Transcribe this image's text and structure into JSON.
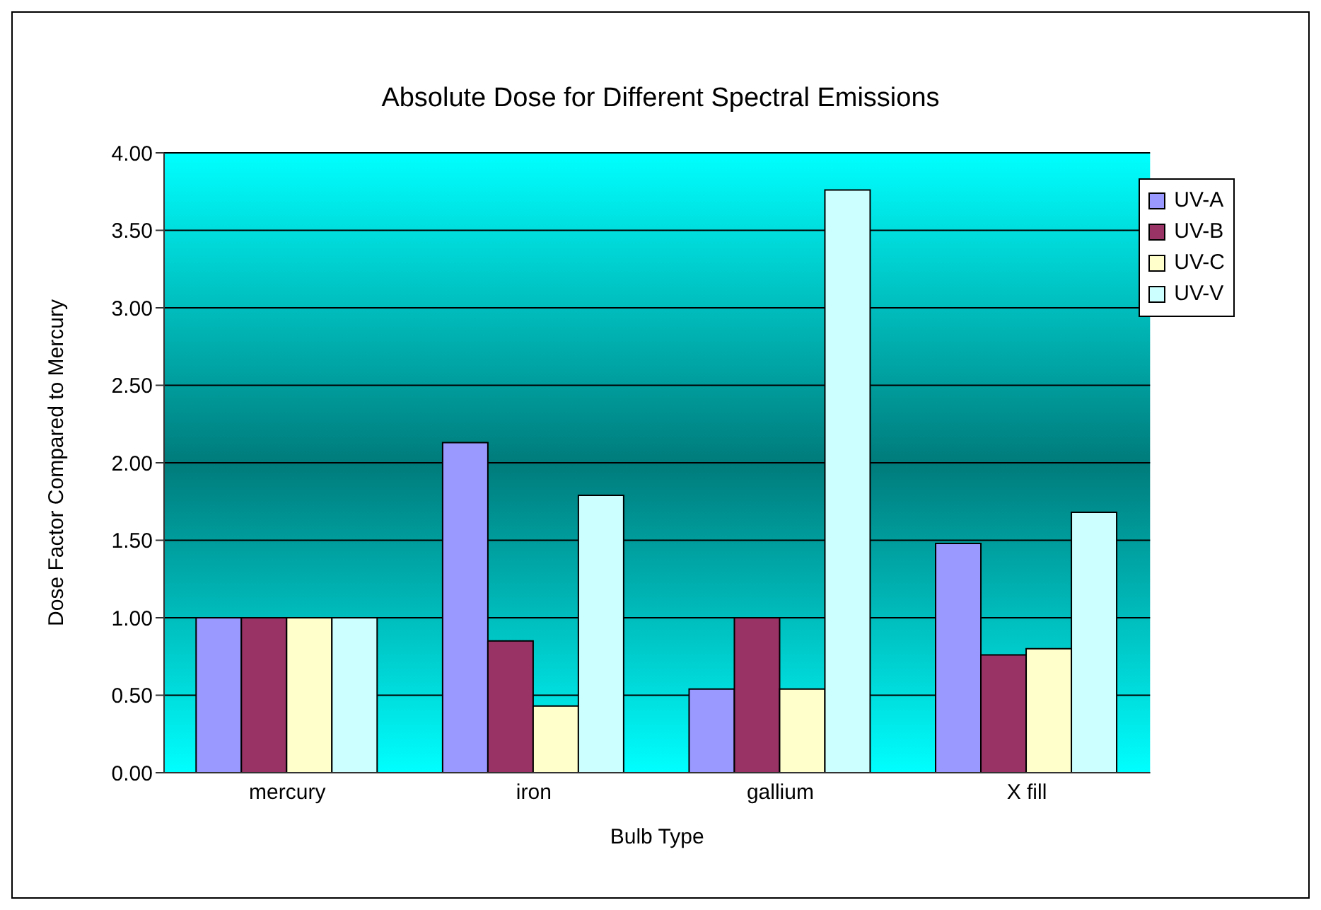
{
  "chart_data": {
    "type": "bar",
    "title": "Absolute Dose for Different Spectral Emissions",
    "xlabel": "Bulb Type",
    "ylabel": "Dose Factor Compared to Mercury",
    "categories": [
      "mercury",
      "iron",
      "gallium",
      "X fill"
    ],
    "series": [
      {
        "name": "UV-A",
        "color": "#9999ff",
        "values": [
          1.0,
          2.13,
          0.54,
          1.48
        ]
      },
      {
        "name": "UV-B",
        "color": "#993366",
        "values": [
          1.0,
          0.85,
          1.0,
          0.76
        ]
      },
      {
        "name": "UV-C",
        "color": "#ffffcc",
        "values": [
          1.0,
          0.43,
          0.54,
          0.8
        ]
      },
      {
        "name": "UV-V",
        "color": "#ccffff",
        "values": [
          1.0,
          1.79,
          3.76,
          1.68
        ]
      }
    ],
    "ylim": [
      0,
      4
    ],
    "yticks": [
      {
        "value": 0,
        "label": "0.00"
      },
      {
        "value": 0.5,
        "label": "0.50"
      },
      {
        "value": 1,
        "label": "1.00"
      },
      {
        "value": 1.5,
        "label": "1.50"
      },
      {
        "value": 2,
        "label": "2.00"
      },
      {
        "value": 2.5,
        "label": "2.50"
      },
      {
        "value": 3,
        "label": "3.00"
      },
      {
        "value": 3.5,
        "label": "3.50"
      },
      {
        "value": 4,
        "label": "4.00"
      }
    ],
    "grid": "y",
    "legend": "top right"
  }
}
